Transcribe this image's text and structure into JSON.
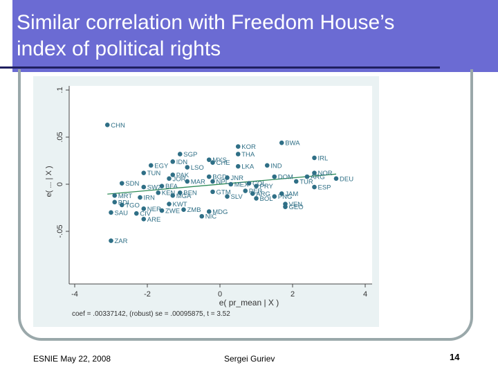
{
  "slide": {
    "title": "Similar correlation with Freedom House’s index of political rights",
    "footer_left": "ESNIE May 22, 2008",
    "footer_center": "Sergei Guriev",
    "page_number": "14"
  },
  "colors": {
    "title_bar": "#6b6bd3",
    "frame": "#9aa8aa",
    "plot_bg": "#eaf2f3",
    "marker": "#2f6f86",
    "fit_line": "#2e8b57"
  },
  "chart_data": {
    "type": "scatter",
    "xlabel": "e( pr_mean | X )",
    "ylabel": "e( ... | X )",
    "xlim": [
      -4,
      4
    ],
    "ylim": [
      -0.1,
      0.1
    ],
    "xticks": [
      "-4",
      "-2",
      "0",
      "2",
      "4"
    ],
    "yticks": [
      "-.05",
      "0",
      ".05",
      ".1"
    ],
    "note": "coef = .00337142, (robust) se = .00095875, t = 3.52",
    "fit_line": {
      "slope": 0.00337142,
      "intercept": 0
    },
    "points": [
      {
        "label": "CHN",
        "x": -3.1,
        "y": 0.063
      },
      {
        "label": "BWA",
        "x": 1.7,
        "y": 0.044
      },
      {
        "label": "KOR",
        "x": 0.5,
        "y": 0.04
      },
      {
        "label": "SGP",
        "x": -1.1,
        "y": 0.032
      },
      {
        "label": "THA",
        "x": 0.5,
        "y": 0.032
      },
      {
        "label": "IRL",
        "x": 2.6,
        "y": 0.028
      },
      {
        "label": "IDN",
        "x": -1.3,
        "y": 0.024
      },
      {
        "label": "MYS",
        "x": -0.3,
        "y": 0.026
      },
      {
        "label": "CHE",
        "x": -0.2,
        "y": 0.023
      },
      {
        "label": "EGY",
        "x": -1.9,
        "y": 0.02
      },
      {
        "label": "LSO",
        "x": -0.9,
        "y": 0.018
      },
      {
        "label": "LKA",
        "x": 0.5,
        "y": 0.019
      },
      {
        "label": "IND",
        "x": 1.3,
        "y": 0.02
      },
      {
        "label": "TUN",
        "x": -2.1,
        "y": 0.012
      },
      {
        "label": "NOR",
        "x": 2.6,
        "y": 0.012
      },
      {
        "label": "PAK",
        "x": -1.3,
        "y": 0.01
      },
      {
        "label": "JOR",
        "x": -1.4,
        "y": 0.006
      },
      {
        "label": "BGD",
        "x": -0.3,
        "y": 0.008
      },
      {
        "label": "JNR",
        "x": 0.2,
        "y": 0.007
      },
      {
        "label": "DOM",
        "x": 1.5,
        "y": 0.008
      },
      {
        "label": "ARG",
        "x": 2.4,
        "y": 0.008
      },
      {
        "label": "DEU",
        "x": 3.2,
        "y": 0.006
      },
      {
        "label": "SDN",
        "x": -2.7,
        "y": 0.001
      },
      {
        "label": "MAR",
        "x": -0.9,
        "y": 0.003
      },
      {
        "label": "NPL",
        "x": -0.2,
        "y": 0.003
      },
      {
        "label": "MEX",
        "x": 0.3,
        "y": 0.0
      },
      {
        "label": "COL",
        "x": 0.8,
        "y": 0.001
      },
      {
        "label": "TUR",
        "x": 2.1,
        "y": 0.003
      },
      {
        "label": "SWZ",
        "x": -2.1,
        "y": -0.003
      },
      {
        "label": "BFA",
        "x": -1.6,
        "y": -0.002
      },
      {
        "label": "PRY",
        "x": 1.0,
        "y": -0.002
      },
      {
        "label": "ESP",
        "x": 2.6,
        "y": -0.003
      },
      {
        "label": "KEN",
        "x": -1.7,
        "y": -0.009
      },
      {
        "label": "BEN",
        "x": -1.1,
        "y": -0.009
      },
      {
        "label": "GTM",
        "x": -0.2,
        "y": -0.008
      },
      {
        "label": "PER",
        "x": 0.7,
        "y": -0.007
      },
      {
        "label": "JAM",
        "x": 1.7,
        "y": -0.01
      },
      {
        "label": "IRN",
        "x": -2.2,
        "y": -0.014
      },
      {
        "label": "MGA",
        "x": -1.3,
        "y": -0.012
      },
      {
        "label": "MRT",
        "x": -2.9,
        "y": -0.012
      },
      {
        "label": "ARG",
        "x": 0.9,
        "y": -0.01
      },
      {
        "label": "SLV",
        "x": 0.2,
        "y": -0.013
      },
      {
        "label": "BOL",
        "x": 1.0,
        "y": -0.015
      },
      {
        "label": "PNG",
        "x": 1.5,
        "y": -0.013
      },
      {
        "label": "BDI",
        "x": -2.9,
        "y": -0.019
      },
      {
        "label": "TGO",
        "x": -2.7,
        "y": -0.022
      },
      {
        "label": "KWT",
        "x": -1.4,
        "y": -0.021
      },
      {
        "label": "VEN",
        "x": 1.8,
        "y": -0.021
      },
      {
        "label": "GEO",
        "x": 1.8,
        "y": -0.024
      },
      {
        "label": "NER",
        "x": -2.1,
        "y": -0.026
      },
      {
        "label": "ZWE",
        "x": -1.6,
        "y": -0.028
      },
      {
        "label": "ZMB",
        "x": -1.0,
        "y": -0.027
      },
      {
        "label": "MDG",
        "x": -0.3,
        "y": -0.029
      },
      {
        "label": "SAU",
        "x": -3.0,
        "y": -0.03
      },
      {
        "label": "CIV",
        "x": -2.3,
        "y": -0.031
      },
      {
        "label": "NIC",
        "x": -0.5,
        "y": -0.034
      },
      {
        "label": "ARE",
        "x": -2.1,
        "y": -0.037
      },
      {
        "label": "ZAR",
        "x": -3.0,
        "y": -0.06
      }
    ]
  }
}
